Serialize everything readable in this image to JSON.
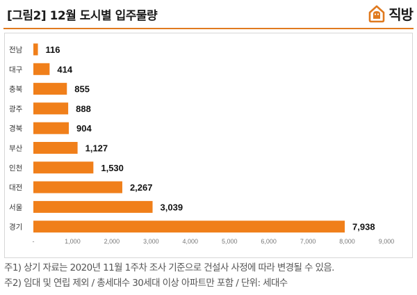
{
  "header": {
    "title": "[그림2] 12월 도시별 입주물량",
    "brand_name": "직방",
    "brand_color": "#e07a1f"
  },
  "chart_data": {
    "type": "bar",
    "orientation": "horizontal",
    "title": "[그림2] 12월 도시별 입주물량",
    "categories": [
      "전남",
      "대구",
      "충북",
      "광주",
      "경북",
      "부산",
      "인천",
      "대전",
      "서울",
      "경기"
    ],
    "values": [
      116,
      414,
      855,
      888,
      904,
      1127,
      1530,
      2267,
      3039,
      7938
    ],
    "value_labels": [
      "116",
      "414",
      "855",
      "888",
      "904",
      "1,127",
      "1,530",
      "2,267",
      "3,039",
      "7,938"
    ],
    "x_ticks": [
      "-",
      "1,000",
      "2,000",
      "3,000",
      "4,000",
      "5,000",
      "6,000",
      "7,000",
      "8,000",
      "9,000"
    ],
    "xlim": [
      0,
      9000
    ],
    "xlabel": "",
    "ylabel": "",
    "bar_color": "#f07f1a",
    "grid": false,
    "legend": "none"
  },
  "notes": {
    "line1": "주1) 상기 자료는 2020년 11월 1주차 조사 기준으로 건설사 사정에 따라 변경될 수 있음.",
    "line2": "주2) 임대 및 연립 제외 / 총세대수 30세대 이상 아파트만 포함 / 단위: 세대수"
  }
}
